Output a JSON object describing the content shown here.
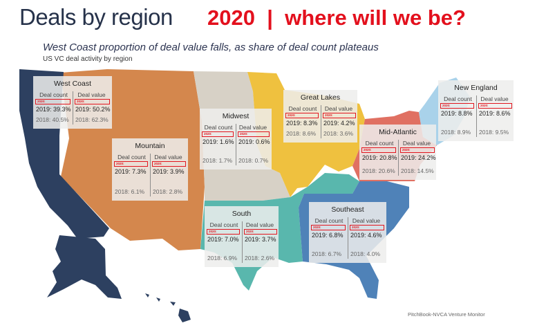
{
  "header": {
    "title": "Deals by region",
    "banner": "2020  |  where will we be?",
    "tagline": "West Coast proportion of deal value falls, as share of deal count plateaus",
    "subline": "US VC deal activity by region",
    "source": "PitchBook-NVCA Venture Monitor"
  },
  "labels": {
    "deal_count": "Deal count",
    "deal_value": "Deal value",
    "placeholder_2020": "2020:"
  },
  "colors": {
    "west_coast": "#2d4060",
    "mountain": "#d4874d",
    "midwest": "#d7d1c6",
    "great_lakes": "#efc13f",
    "south": "#59b7ad",
    "southeast": "#4f82b8",
    "mid_atlantic": "#e07062",
    "new_england": "#a9d2ea",
    "highlight": "#e2151e"
  },
  "regions": [
    {
      "id": "west-coast",
      "name": "West Coast",
      "count_2019": "2019: 39.3%",
      "value_2019": "2019: 50.2%",
      "count_2018": "2018: 40.5%",
      "value_2018": "2018: 62.3%"
    },
    {
      "id": "mountain",
      "name": "Mountain",
      "count_2019": "2019: 7.3%",
      "value_2019": "2019: 3.9%",
      "count_2018": "2018: 6.1%",
      "value_2018": "2018: 2.8%"
    },
    {
      "id": "midwest",
      "name": "Midwest",
      "count_2019": "2019: 1.6%",
      "value_2019": "2019: 0.6%",
      "count_2018": "2018: 1.7%",
      "value_2018": "2018: 0.7%"
    },
    {
      "id": "great-lakes",
      "name": "Great Lakes",
      "count_2019": "2019: 8.3%",
      "value_2019": "2019: 4.2%",
      "count_2018": "2018: 8.6%",
      "value_2018": "2018: 3.6%"
    },
    {
      "id": "new-england",
      "name": "New England",
      "count_2019": "2019: 8.8%",
      "value_2019": "2019: 8.6%",
      "count_2018": "2018: 8.9%",
      "value_2018": "2018: 9.5%"
    },
    {
      "id": "mid-atlantic",
      "name": "Mid-Atlantic",
      "count_2019": "2019: 20.8%",
      "value_2019": "2019: 24.2%",
      "count_2018": "2018: 20.6%",
      "value_2018": "2018: 14.5%"
    },
    {
      "id": "south",
      "name": "South",
      "count_2019": "2019: 7.0%",
      "value_2019": "2019: 3.7%",
      "count_2018": "2018: 6.9%",
      "value_2018": "2018: 2.6%"
    },
    {
      "id": "southeast",
      "name": "Southeast",
      "count_2019": "2019: 6.8%",
      "value_2019": "2019: 4.6%",
      "count_2018": "2018: 6.7%",
      "value_2018": "2018: 4.0%"
    }
  ]
}
